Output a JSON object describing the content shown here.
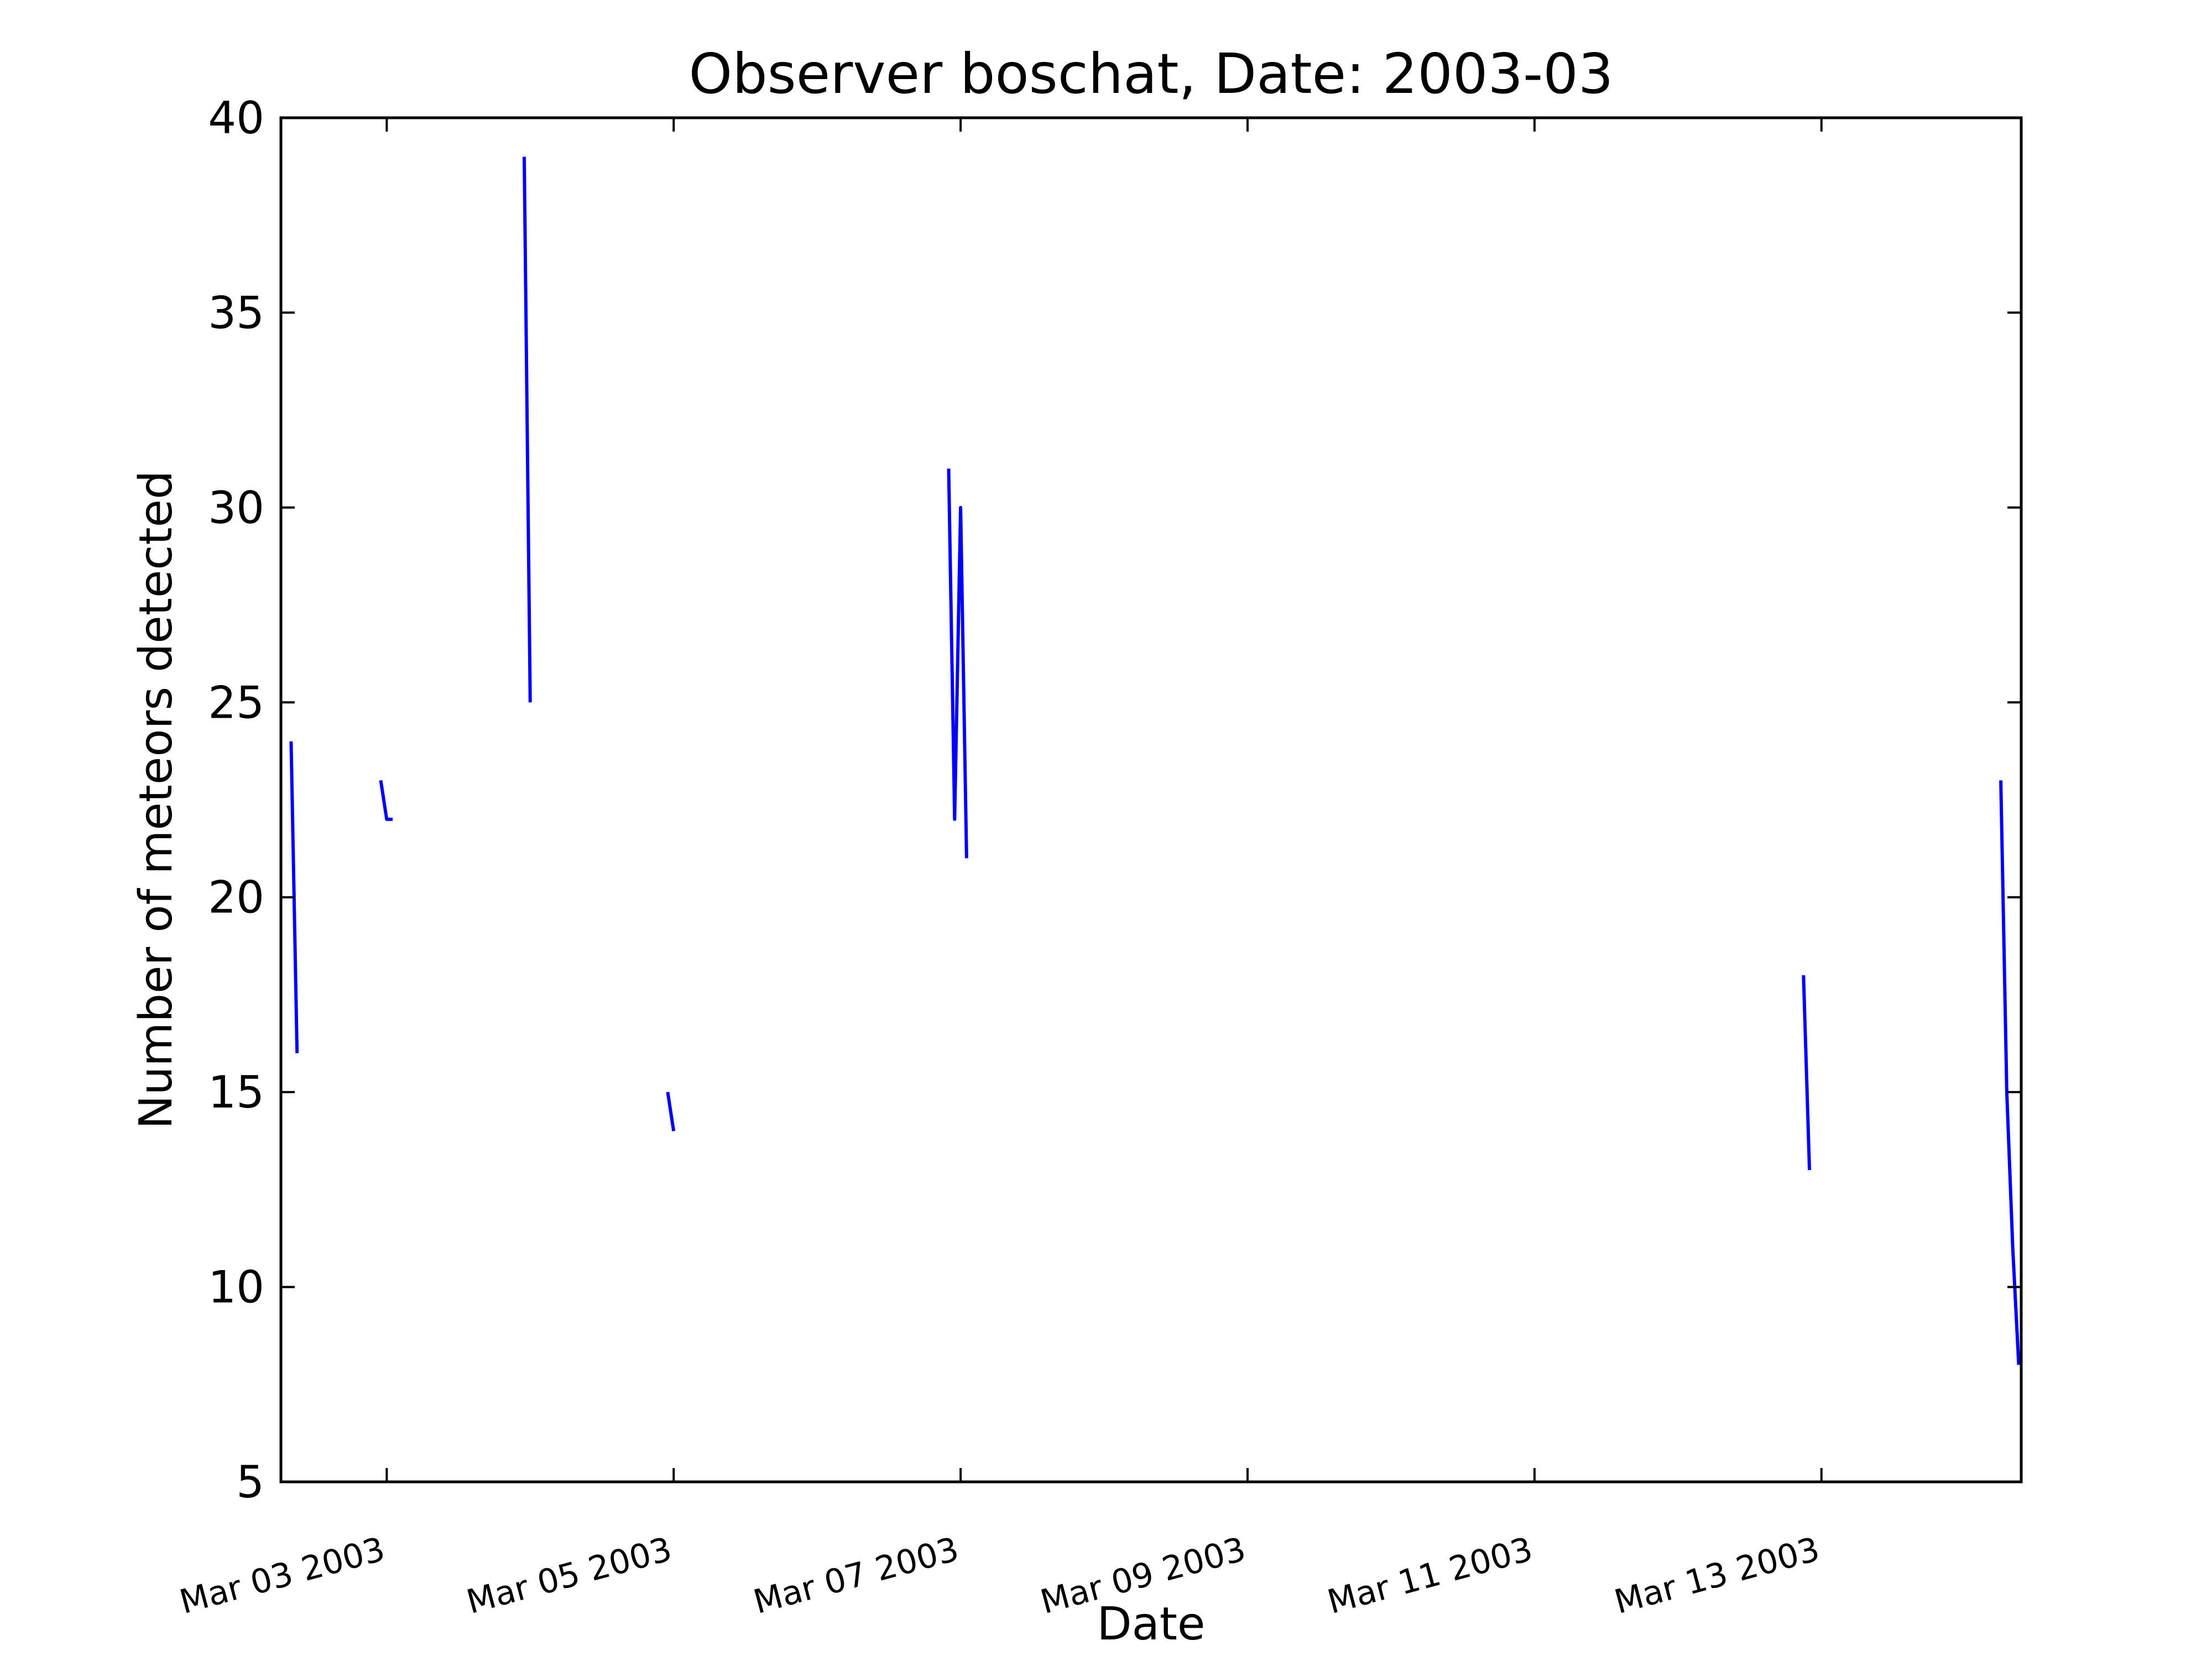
{
  "chart_data": {
    "type": "line",
    "title": "Observer boschat, Date: 2003-03",
    "xlabel": "Date",
    "ylabel": "Number of meteors detected",
    "xlim": [
      "2003-03-02 06:18",
      "2003-03-14 09:25"
    ],
    "ylim": [
      5,
      40
    ],
    "yticks": [
      5,
      10,
      15,
      20,
      25,
      30,
      35,
      40
    ],
    "ytick_labels": [
      "5",
      "10",
      "15",
      "20",
      "25",
      "30",
      "35",
      "40"
    ],
    "xticks": [
      "2003-03-03",
      "2003-03-05",
      "2003-03-07",
      "2003-03-09",
      "2003-03-11",
      "2003-03-13"
    ],
    "xtick_labels": [
      "Mar 03 2003",
      "Mar 05 2003",
      "Mar 07 2003",
      "Mar 09 2003",
      "Mar 11 2003",
      "Mar 13 2003"
    ],
    "grid": false,
    "legend": false,
    "series_color": "#0000ff",
    "segments": [
      [
        {
          "x": "2003-03-02 08:00",
          "y": 24
        },
        {
          "x": "2003-03-02 09:00",
          "y": 16
        }
      ],
      [
        {
          "x": "2003-03-02 23:00",
          "y": 23
        },
        {
          "x": "2003-03-03 00:00",
          "y": 22
        },
        {
          "x": "2003-03-03 01:00",
          "y": 22
        }
      ],
      [
        {
          "x": "2003-03-03 23:00",
          "y": 39
        },
        {
          "x": "2003-03-04 00:00",
          "y": 25
        }
      ],
      [
        {
          "x": "2003-03-04 23:00",
          "y": 15
        },
        {
          "x": "2003-03-05 00:00",
          "y": 14
        }
      ],
      [
        {
          "x": "2003-03-06 22:00",
          "y": 31
        },
        {
          "x": "2003-03-06 23:00",
          "y": 22
        },
        {
          "x": "2003-03-07 00:00",
          "y": 30
        },
        {
          "x": "2003-03-07 01:00",
          "y": 21
        }
      ],
      [
        {
          "x": "2003-03-12 21:00",
          "y": 18
        },
        {
          "x": "2003-03-12 22:00",
          "y": 13
        }
      ],
      [
        {
          "x": "2003-03-14 06:00",
          "y": 23
        },
        {
          "x": "2003-03-14 07:00",
          "y": 15
        },
        {
          "x": "2003-03-14 08:00",
          "y": 11
        },
        {
          "x": "2003-03-14 09:00",
          "y": 8
        }
      ]
    ]
  }
}
